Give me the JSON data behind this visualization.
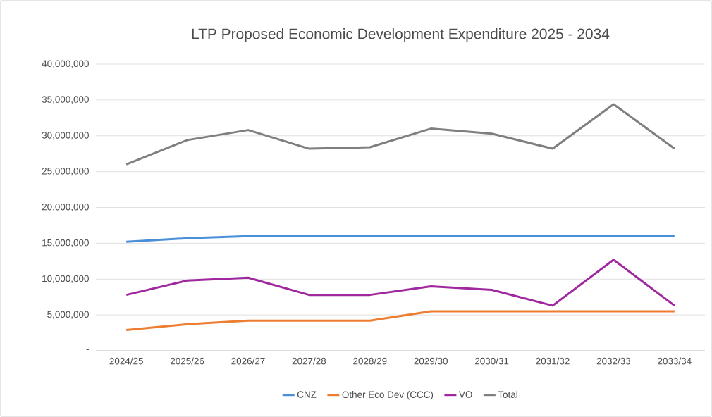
{
  "chart_data": {
    "type": "line",
    "title": "LTP Proposed Economic Development Expenditure 2025 - 2034",
    "categories": [
      "2024/25",
      "2025/26",
      "2026/27",
      "2027/28",
      "2028/29",
      "2029/30",
      "2030/31",
      "2031/32",
      "2032/33",
      "2033/34"
    ],
    "series": [
      {
        "name": "CNZ",
        "color": "#4a90d9",
        "values": [
          15200000,
          15700000,
          16000000,
          16000000,
          16000000,
          16000000,
          16000000,
          16000000,
          16000000,
          16000000
        ]
      },
      {
        "name": "Other Eco Dev (CCC)",
        "color": "#ed7d31",
        "values": [
          2900000,
          3700000,
          4200000,
          4200000,
          4200000,
          5500000,
          5500000,
          5500000,
          5500000,
          5500000
        ]
      },
      {
        "name": "VO",
        "color": "#a0289e",
        "values": [
          7800000,
          9800000,
          10200000,
          7800000,
          7800000,
          9000000,
          8500000,
          6300000,
          12700000,
          6300000
        ]
      },
      {
        "name": "Total",
        "color": "#7f7f7f",
        "values": [
          26000000,
          29400000,
          30800000,
          28200000,
          28400000,
          31000000,
          30300000,
          28200000,
          34400000,
          28200000
        ]
      }
    ],
    "ylim": [
      0,
      40000000
    ],
    "yticks": [
      {
        "value": 0,
        "label": "-"
      },
      {
        "value": 5000000,
        "label": "5,000,000"
      },
      {
        "value": 10000000,
        "label": "10,000,000"
      },
      {
        "value": 15000000,
        "label": "15,000,000"
      },
      {
        "value": 20000000,
        "label": "20,000,000"
      },
      {
        "value": 25000000,
        "label": "25,000,000"
      },
      {
        "value": 30000000,
        "label": "30,000,000"
      },
      {
        "value": 35000000,
        "label": "35,000,000"
      },
      {
        "value": 40000000,
        "label": "40,000,000"
      }
    ],
    "grid": "y",
    "legend": "bottom"
  }
}
